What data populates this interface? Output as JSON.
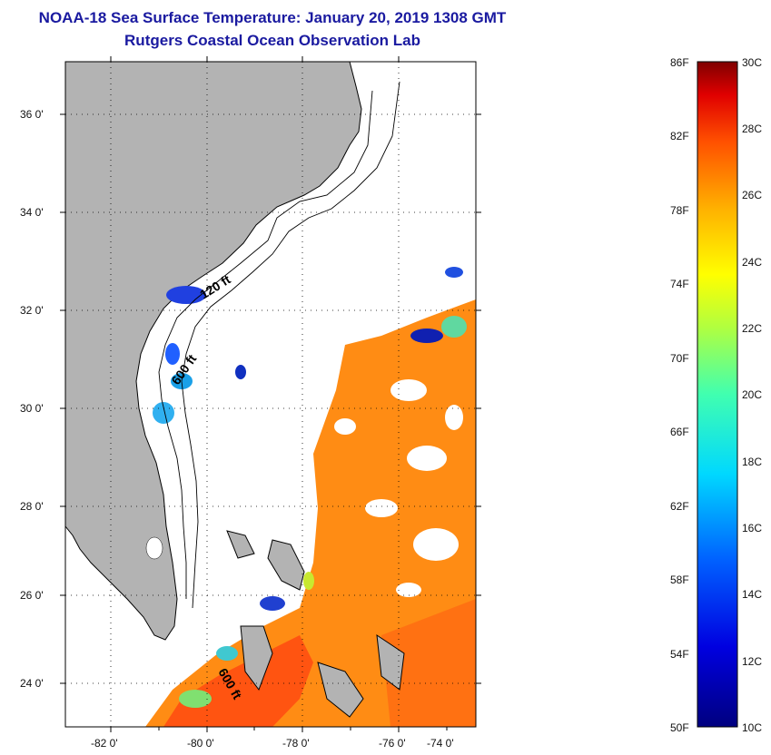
{
  "title": {
    "line1": "NOAA-18 Sea Surface Temperature:  January 20, 2019 1308 GMT",
    "line2": "Rutgers Coastal Ocean Observation Lab"
  },
  "map": {
    "lon_ticks": [
      "-82 0'",
      "-80 0'",
      "-78 0'",
      "-76 0'",
      "-74 0'"
    ],
    "lat_ticks": [
      "36 0'",
      "34 0'",
      "32 0'",
      "30 0'",
      "28 0'",
      "26 0'",
      "24 0'"
    ],
    "contours": {
      "c120": "120 ft",
      "c600a": "600 ft",
      "c600b": "600 ft"
    },
    "colors": {
      "land": "#b3b3b3",
      "coast": "#000000",
      "grid": "#000000"
    }
  },
  "colorbar": {
    "f_labels": [
      "86F",
      "82F",
      "78F",
      "74F",
      "70F",
      "66F",
      "62F",
      "58F",
      "54F",
      "50F"
    ],
    "c_labels": [
      "30C",
      "28C",
      "26C",
      "24C",
      "22C",
      "20C",
      "18C",
      "16C",
      "14C",
      "12C",
      "10C"
    ]
  }
}
